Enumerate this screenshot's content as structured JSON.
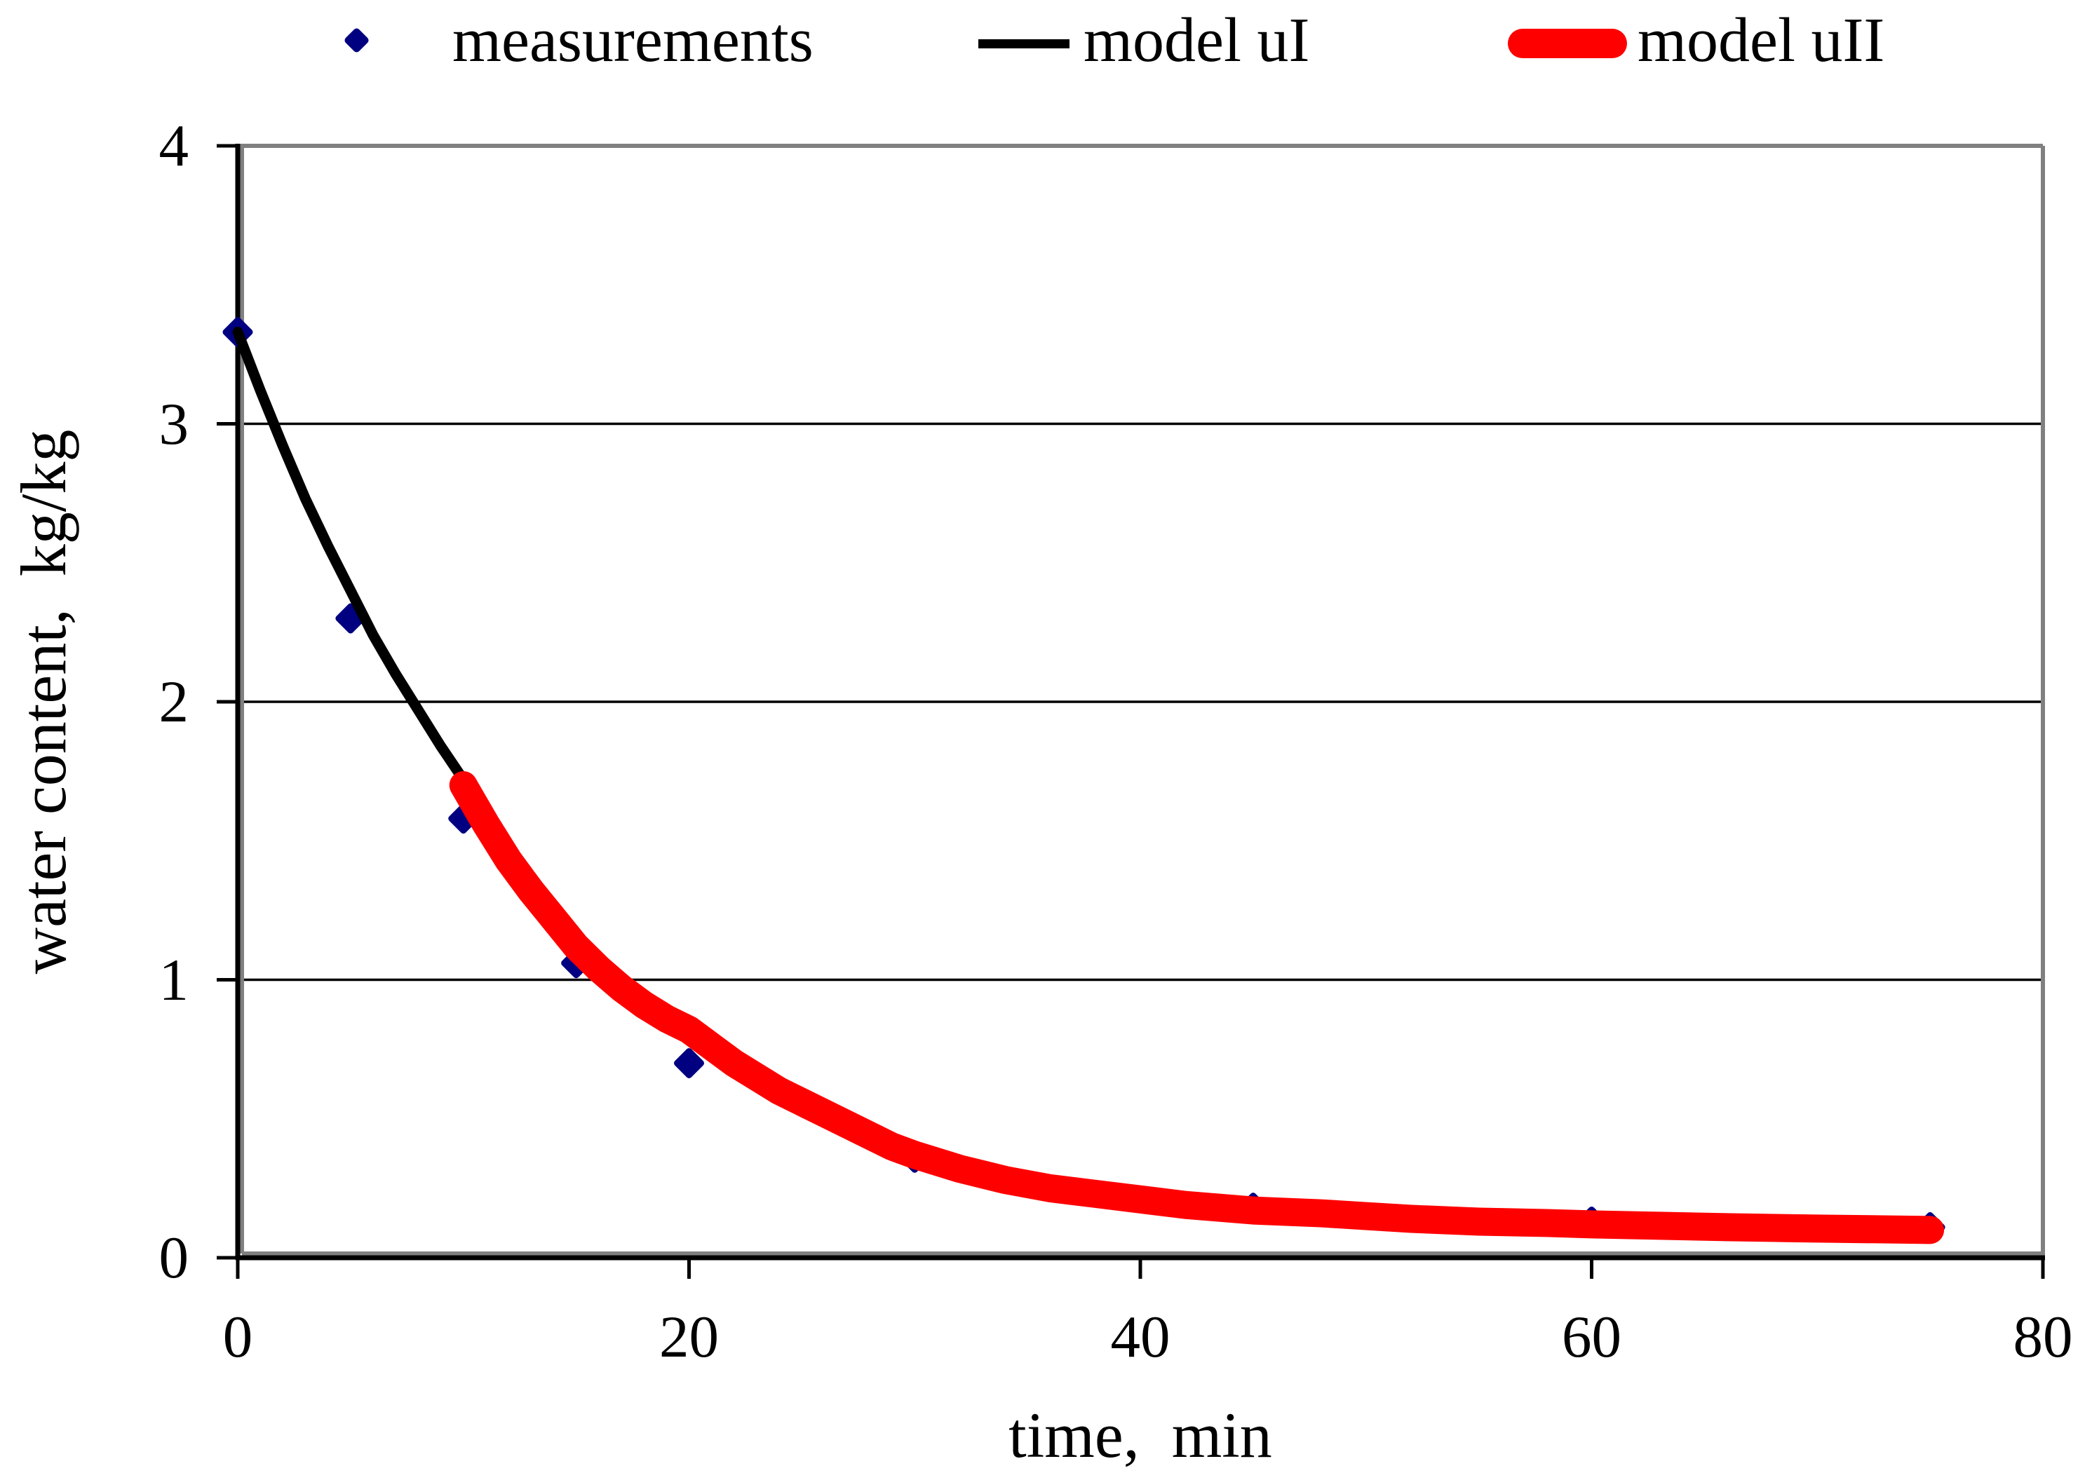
{
  "colors": {
    "measurement_marker": "#000080",
    "model_uI_line": "#000000",
    "model_uII_line": "#ff0000",
    "gridline": "#000000",
    "axis_line": "#000000",
    "plot_border": "#808080",
    "background": "#ffffff"
  },
  "chart_data": {
    "type": "scatter",
    "title": "",
    "xlabel": "time,  min",
    "ylabel": "water content,  kg/kg",
    "xlim": [
      0,
      80
    ],
    "ylim": [
      0,
      4
    ],
    "x_ticks": [
      0,
      20,
      40,
      60,
      80
    ],
    "y_ticks": [
      0,
      1,
      2,
      3,
      4
    ],
    "grid": "horizontal",
    "legend_position": "top",
    "series": [
      {
        "name": "measurements",
        "type": "scatter",
        "marker": "diamond",
        "color": "#000080",
        "points": [
          [
            0,
            3.33
          ],
          [
            5,
            2.3
          ],
          [
            10,
            1.58
          ],
          [
            15,
            1.06
          ],
          [
            20,
            0.7
          ],
          [
            30,
            0.36
          ],
          [
            45,
            0.18
          ],
          [
            60,
            0.13
          ],
          [
            75,
            0.11
          ]
        ]
      },
      {
        "name": "model uI",
        "type": "line",
        "color": "#000000",
        "width": 15,
        "points": [
          [
            0,
            3.33
          ],
          [
            1,
            3.12
          ],
          [
            2,
            2.92
          ],
          [
            3,
            2.73
          ],
          [
            4,
            2.56
          ],
          [
            5,
            2.4
          ],
          [
            6,
            2.24
          ],
          [
            7,
            2.1
          ],
          [
            8,
            1.97
          ],
          [
            9,
            1.84
          ],
          [
            10,
            1.72
          ]
        ]
      },
      {
        "name": "model uII",
        "type": "line",
        "color": "#ff0000",
        "width": 40,
        "points": [
          [
            10,
            1.7
          ],
          [
            11,
            1.56
          ],
          [
            12,
            1.43
          ],
          [
            13,
            1.32
          ],
          [
            14,
            1.22
          ],
          [
            15,
            1.12
          ],
          [
            16,
            1.04
          ],
          [
            17,
            0.97
          ],
          [
            18,
            0.91
          ],
          [
            19,
            0.86
          ],
          [
            20,
            0.82
          ],
          [
            21,
            0.76
          ],
          [
            22,
            0.7
          ],
          [
            23,
            0.65
          ],
          [
            24,
            0.6
          ],
          [
            25,
            0.56
          ],
          [
            26,
            0.52
          ],
          [
            27,
            0.48
          ],
          [
            28,
            0.44
          ],
          [
            29,
            0.4
          ],
          [
            30,
            0.37
          ],
          [
            32,
            0.32
          ],
          [
            34,
            0.28
          ],
          [
            36,
            0.25
          ],
          [
            38,
            0.23
          ],
          [
            40,
            0.21
          ],
          [
            42,
            0.19
          ],
          [
            45,
            0.17
          ],
          [
            48,
            0.16
          ],
          [
            50,
            0.15
          ],
          [
            52,
            0.14
          ],
          [
            55,
            0.13
          ],
          [
            58,
            0.125
          ],
          [
            60,
            0.12
          ],
          [
            63,
            0.115
          ],
          [
            66,
            0.11
          ],
          [
            70,
            0.105
          ],
          [
            75,
            0.1
          ]
        ]
      }
    ]
  }
}
